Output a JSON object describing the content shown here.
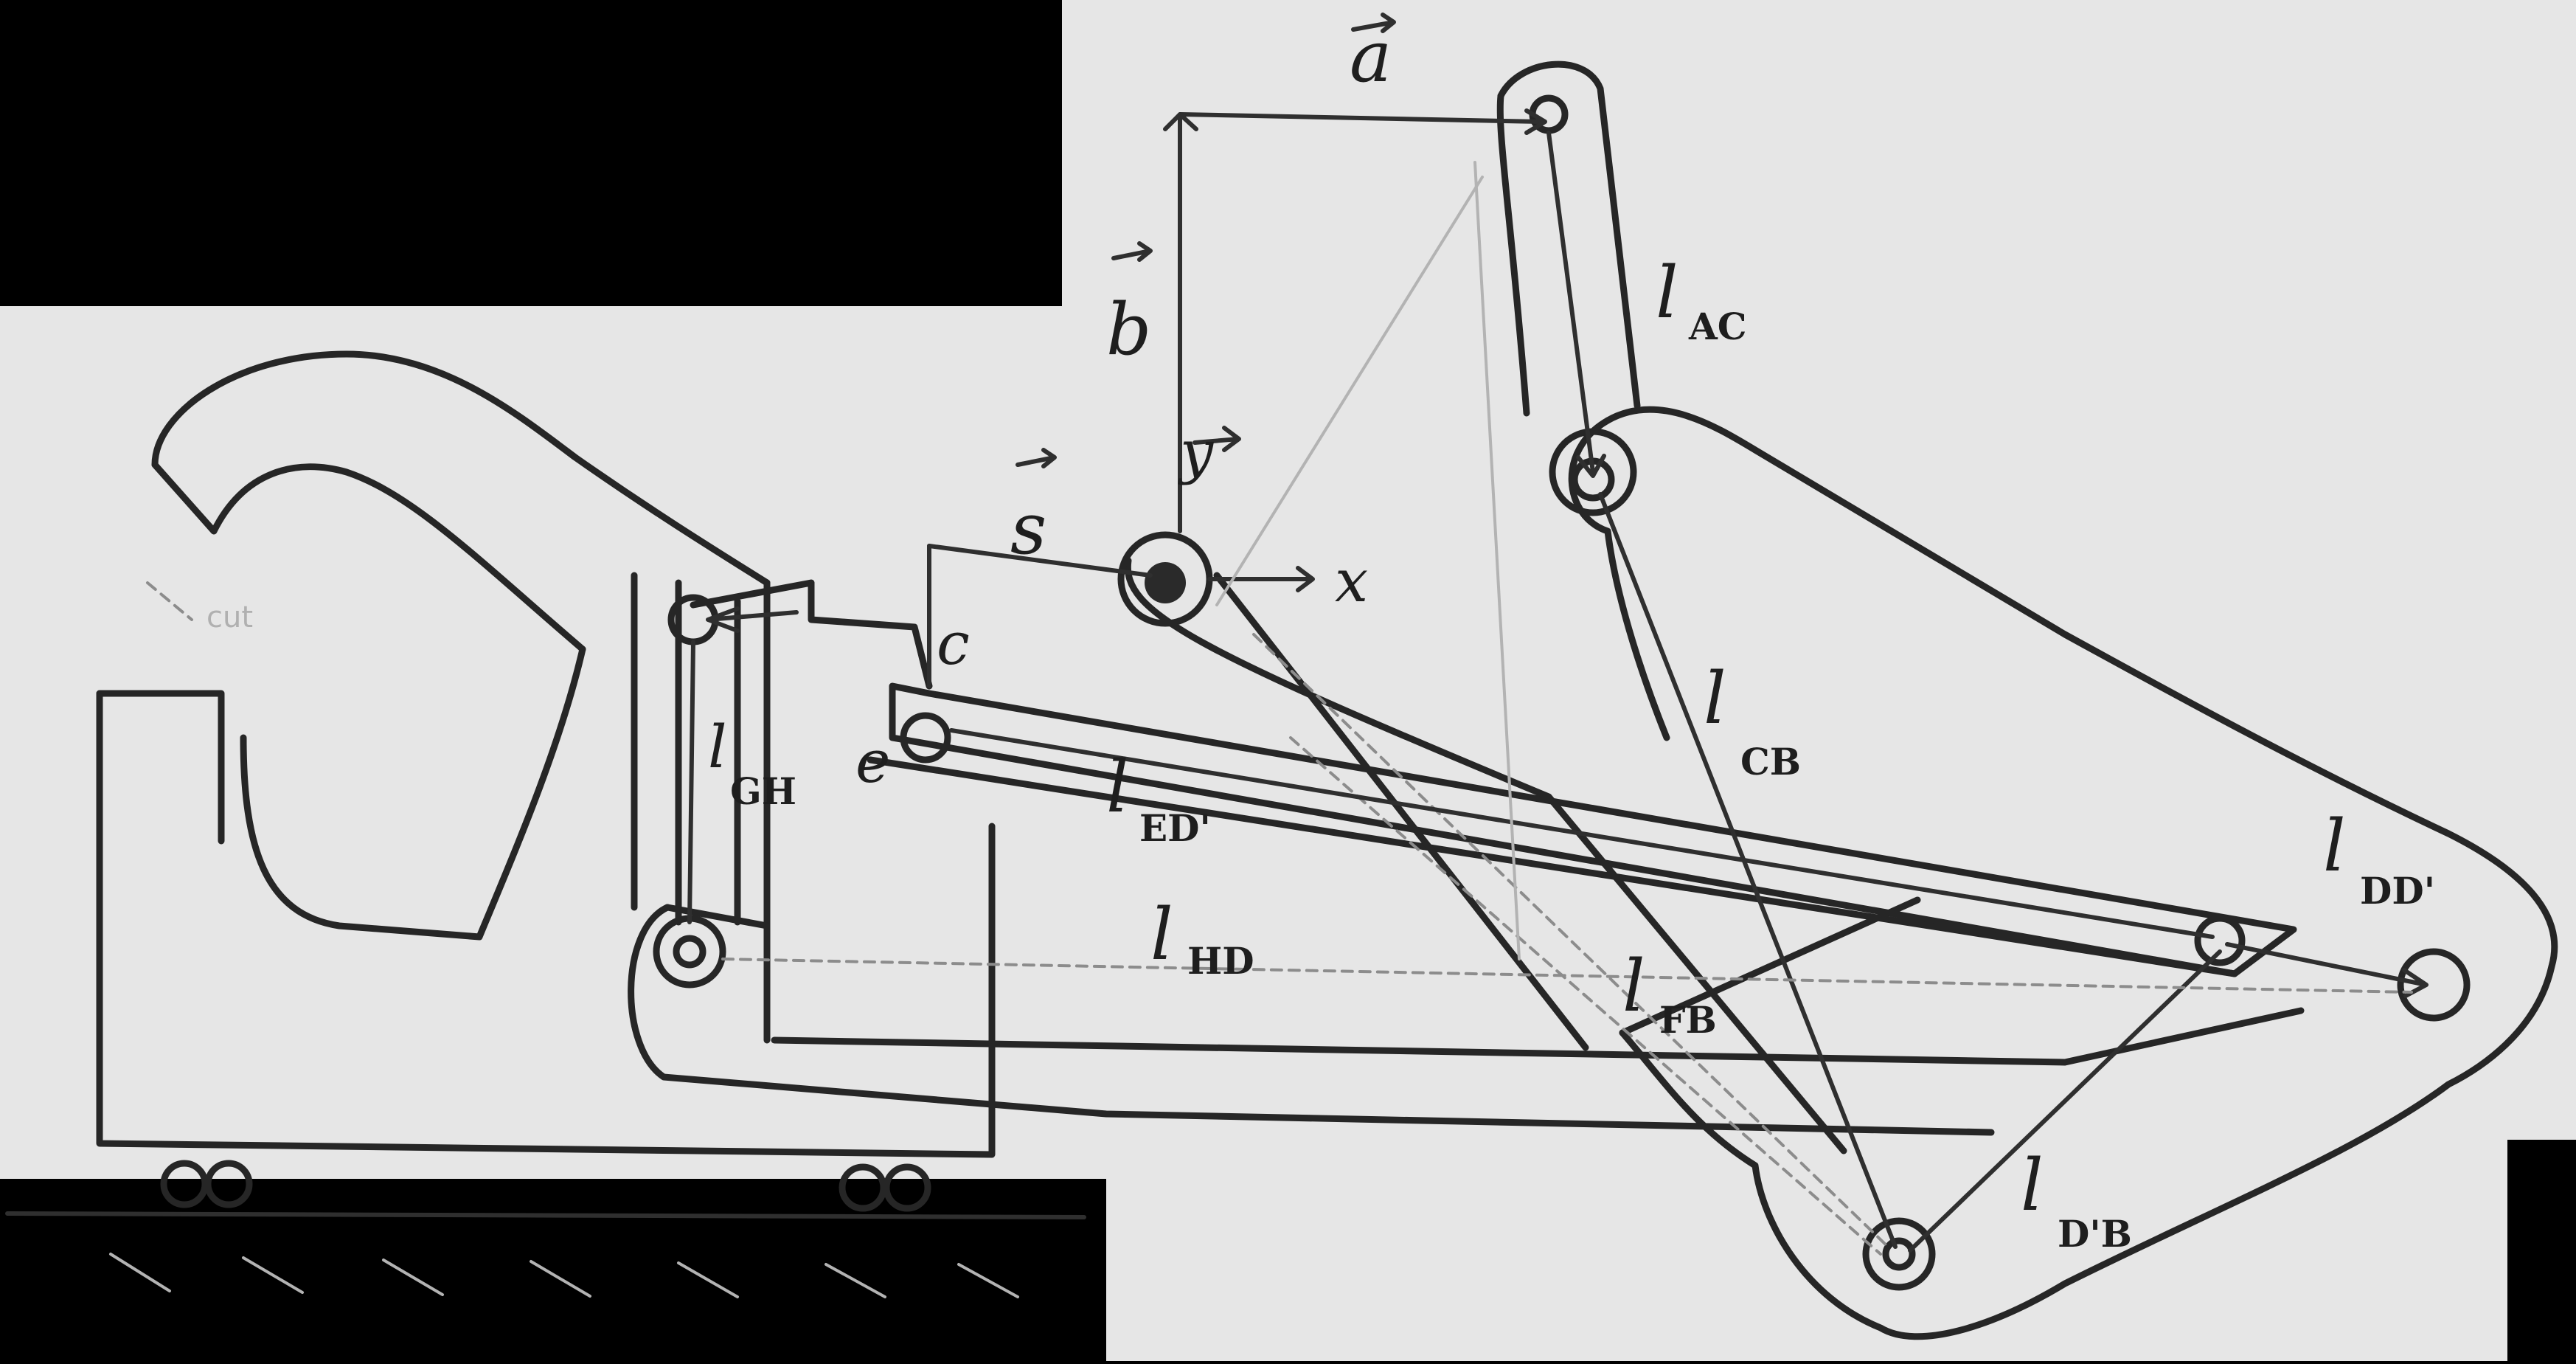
{
  "diagram": {
    "labels": {
      "a": "a",
      "b": "b",
      "s": "s",
      "c": "c",
      "e": "e",
      "x": "x",
      "y": "y",
      "l": "l",
      "sub_ac": "AC",
      "sub_cb": "CB",
      "sub_ed": "ED'",
      "sub_gh": "GH",
      "sub_hd": "HD",
      "sub_fb": "FB",
      "sub_dd": "DD'",
      "sub_db": "D'B",
      "faint_note": "cut"
    },
    "colors": {
      "paper": "#e6e6e6",
      "ink": "#262626",
      "background": "#000000"
    }
  }
}
